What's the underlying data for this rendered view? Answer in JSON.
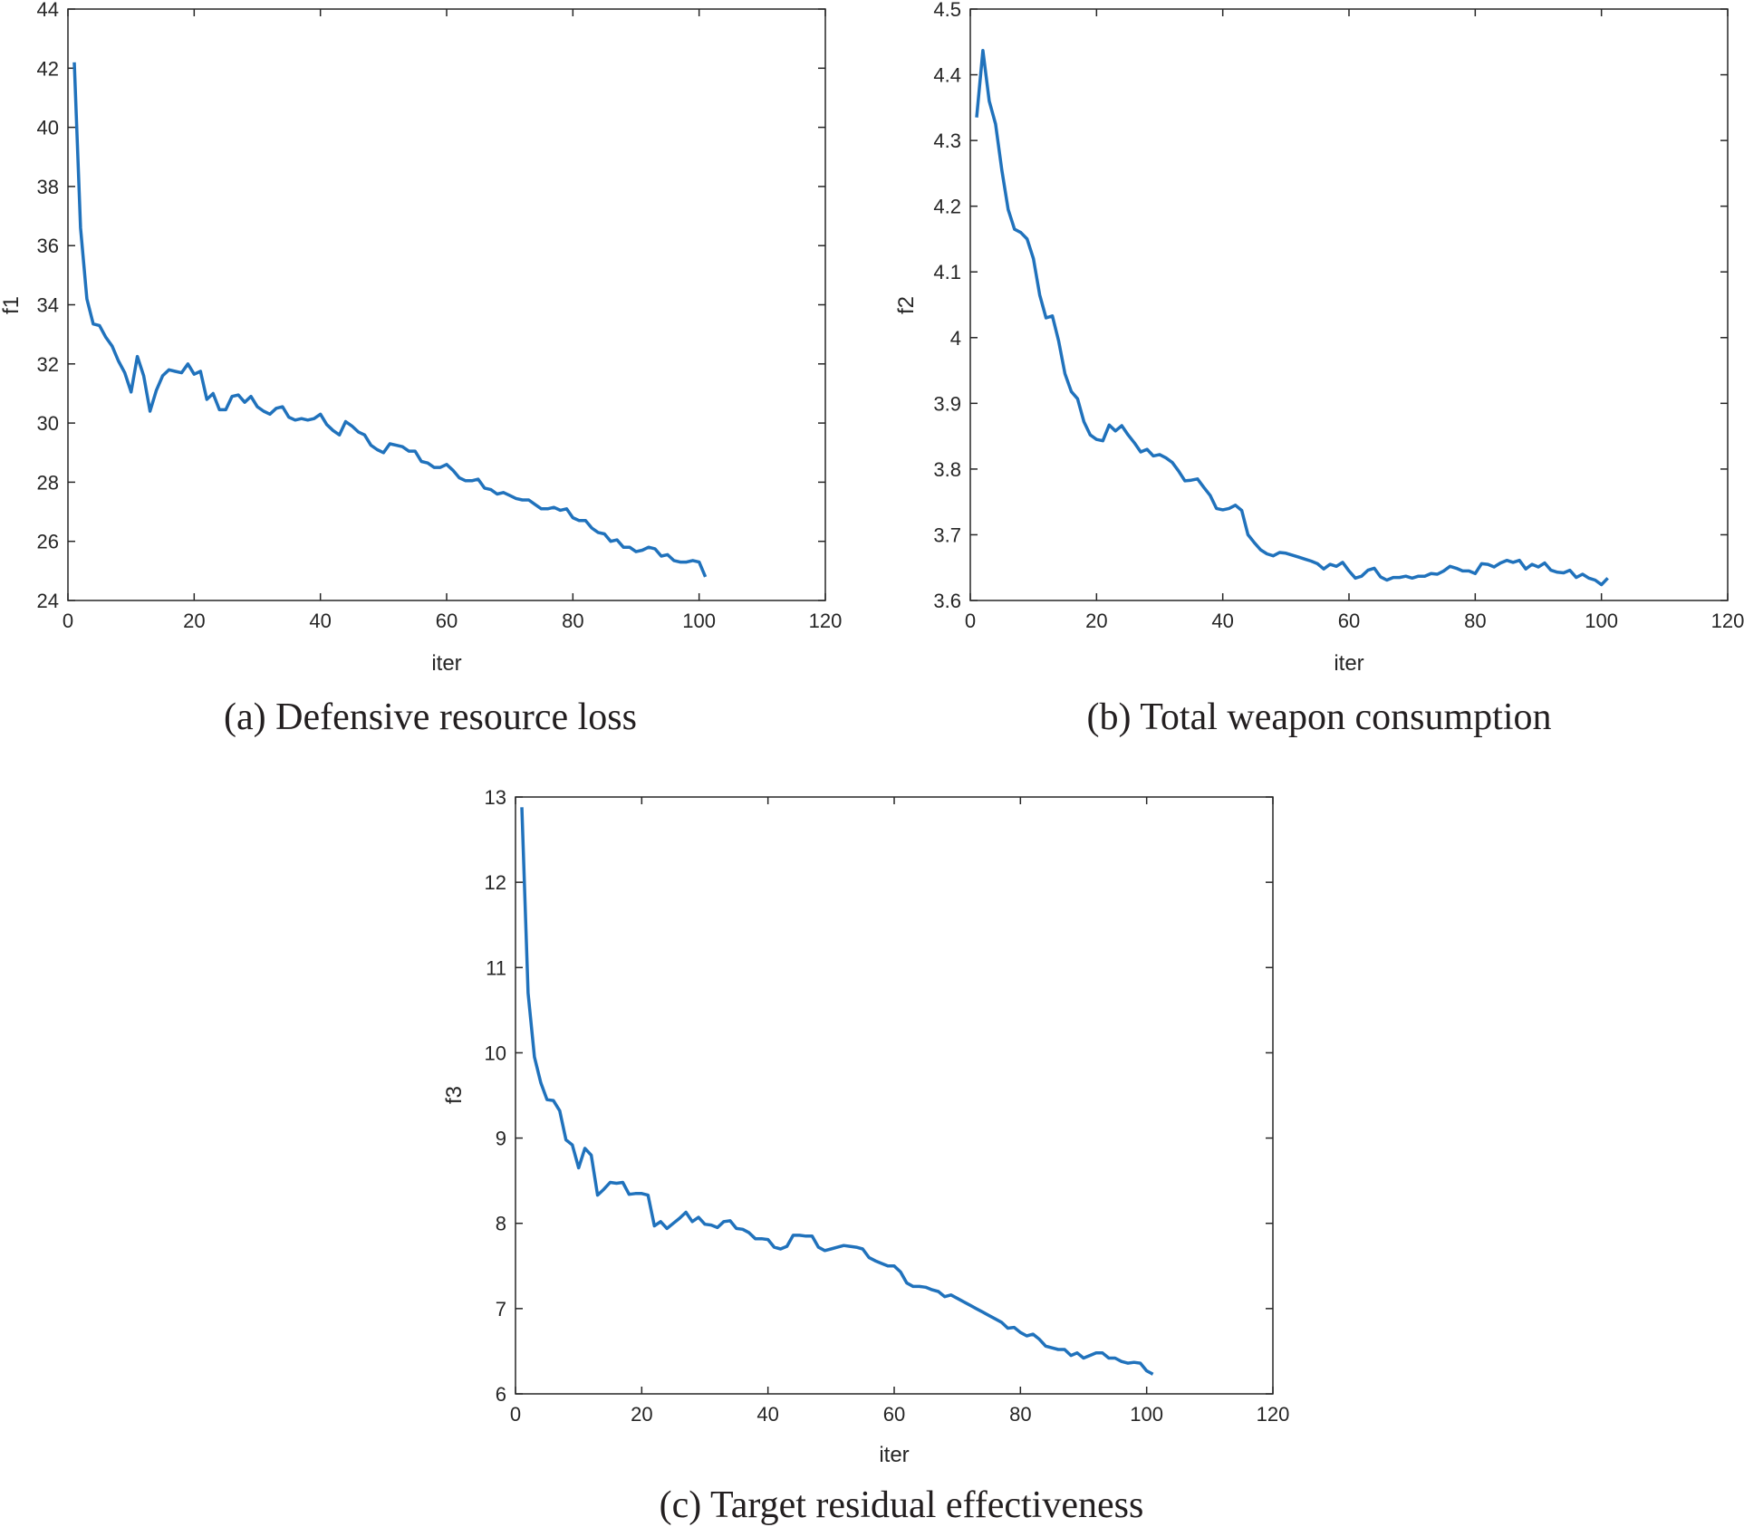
{
  "chart_data": [
    {
      "type": "line",
      "caption": "(a) Defensive resource loss",
      "xlabel": "iter",
      "ylabel": "f1",
      "xlim": [
        0,
        120
      ],
      "ylim": [
        24,
        44
      ],
      "xticks": [
        "0",
        "20",
        "40",
        "60",
        "80",
        "100",
        "120"
      ],
      "yticks": [
        "24",
        "26",
        "28",
        "30",
        "32",
        "34",
        "36",
        "38",
        "40",
        "42",
        "44"
      ],
      "series": [
        {
          "name": "f1",
          "color": "#2072BC",
          "x": [
            1,
            2,
            3,
            4,
            5,
            6,
            7,
            8,
            9,
            10,
            11,
            12,
            13,
            14,
            15,
            16,
            17,
            18,
            19,
            20,
            21,
            22,
            23,
            24,
            25,
            26,
            27,
            28,
            29,
            30,
            31,
            32,
            33,
            34,
            35,
            36,
            37,
            38,
            39,
            40,
            41,
            42,
            43,
            44,
            45,
            46,
            47,
            48,
            49,
            50,
            51,
            52,
            53,
            54,
            55,
            56,
            57,
            58,
            59,
            60,
            61,
            62,
            63,
            64,
            65,
            66,
            67,
            68,
            69,
            70,
            71,
            72,
            73,
            74,
            75,
            76,
            77,
            78,
            79,
            80,
            81,
            82,
            83,
            84,
            85,
            86,
            87,
            88,
            89,
            90,
            91,
            92,
            93,
            94,
            95,
            96,
            97,
            98,
            99,
            100,
            101
          ],
          "values": [
            42.2,
            36.6,
            34.2,
            33.35,
            33.3,
            32.9,
            32.6,
            32.1,
            31.7,
            31.05,
            32.25,
            31.6,
            30.4,
            31.1,
            31.6,
            31.8,
            31.75,
            31.7,
            32.0,
            31.65,
            31.75,
            30.8,
            31.0,
            30.45,
            30.45,
            30.9,
            30.95,
            30.7,
            30.9,
            30.55,
            30.4,
            30.3,
            30.5,
            30.55,
            30.2,
            30.1,
            30.15,
            30.1,
            30.15,
            30.3,
            29.95,
            29.75,
            29.6,
            30.05,
            29.9,
            29.7,
            29.6,
            29.25,
            29.1,
            29.0,
            29.3,
            29.25,
            29.2,
            29.05,
            29.05,
            28.7,
            28.65,
            28.5,
            28.5,
            28.6,
            28.4,
            28.15,
            28.05,
            28.05,
            28.1,
            27.8,
            27.75,
            27.6,
            27.65,
            27.55,
            27.45,
            27.4,
            27.4,
            27.25,
            27.1,
            27.1,
            27.15,
            27.05,
            27.1,
            26.8,
            26.7,
            26.7,
            26.45,
            26.3,
            26.25,
            26.0,
            26.05,
            25.8,
            25.8,
            25.65,
            25.7,
            25.8,
            25.75,
            25.5,
            25.55,
            25.35,
            25.3,
            25.3,
            25.35,
            25.3,
            24.8
          ]
        }
      ]
    },
    {
      "type": "line",
      "caption": "(b) Total weapon consumption",
      "xlabel": "iter",
      "ylabel": "f2",
      "xlim": [
        0,
        120
      ],
      "ylim": [
        3.6,
        4.5
      ],
      "xticks": [
        "0",
        "20",
        "40",
        "60",
        "80",
        "100",
        "120"
      ],
      "yticks": [
        "3.6",
        "3.7",
        "3.8",
        "3.9",
        "4",
        "4.1",
        "4.2",
        "4.3",
        "4.4",
        "4.5"
      ],
      "series": [
        {
          "name": "f2",
          "color": "#2072BC",
          "x": [
            1,
            2,
            3,
            4,
            5,
            6,
            7,
            8,
            9,
            10,
            11,
            12,
            13,
            14,
            15,
            16,
            17,
            18,
            19,
            20,
            21,
            22,
            23,
            24,
            25,
            26,
            27,
            28,
            29,
            30,
            31,
            32,
            33,
            34,
            35,
            36,
            37,
            38,
            39,
            40,
            41,
            42,
            43,
            44,
            45,
            46,
            47,
            48,
            49,
            50,
            51,
            52,
            53,
            54,
            55,
            56,
            57,
            58,
            59,
            60,
            61,
            62,
            63,
            64,
            65,
            66,
            67,
            68,
            69,
            70,
            71,
            72,
            73,
            74,
            75,
            76,
            77,
            78,
            79,
            80,
            81,
            82,
            83,
            84,
            85,
            86,
            87,
            88,
            89,
            90,
            91,
            92,
            93,
            94,
            95,
            96,
            97,
            98,
            99,
            100,
            101
          ],
          "values": [
            4.335,
            4.437,
            4.36,
            4.325,
            4.255,
            4.195,
            4.165,
            4.16,
            4.15,
            4.12,
            4.065,
            4.03,
            4.033,
            3.995,
            3.945,
            3.918,
            3.907,
            3.872,
            3.852,
            3.845,
            3.843,
            3.867,
            3.858,
            3.866,
            3.852,
            3.84,
            3.826,
            3.83,
            3.82,
            3.822,
            3.817,
            3.81,
            3.797,
            3.782,
            3.783,
            3.785,
            3.772,
            3.76,
            3.74,
            3.738,
            3.74,
            3.745,
            3.737,
            3.7,
            3.688,
            3.677,
            3.671,
            3.668,
            3.673,
            3.672,
            3.669,
            3.666,
            3.663,
            3.66,
            3.656,
            3.648,
            3.655,
            3.652,
            3.658,
            3.645,
            3.634,
            3.637,
            3.646,
            3.649,
            3.636,
            3.631,
            3.635,
            3.635,
            3.637,
            3.634,
            3.637,
            3.637,
            3.641,
            3.64,
            3.645,
            3.652,
            3.649,
            3.645,
            3.645,
            3.641,
            3.656,
            3.655,
            3.651,
            3.657,
            3.661,
            3.658,
            3.661,
            3.648,
            3.655,
            3.651,
            3.657,
            3.646,
            3.643,
            3.642,
            3.646,
            3.635,
            3.64,
            3.634,
            3.631,
            3.624,
            3.634
          ]
        }
      ]
    },
    {
      "type": "line",
      "caption": "(c) Target residual effectiveness",
      "xlabel": "iter",
      "ylabel": "f3",
      "xlim": [
        0,
        120
      ],
      "ylim": [
        6,
        13
      ],
      "xticks": [
        "0",
        "20",
        "40",
        "60",
        "80",
        "100",
        "120"
      ],
      "yticks": [
        "6",
        "7",
        "8",
        "9",
        "10",
        "11",
        "12",
        "13"
      ],
      "series": [
        {
          "name": "f3",
          "color": "#2072BC",
          "x": [
            1,
            2,
            3,
            4,
            5,
            6,
            7,
            8,
            9,
            10,
            11,
            12,
            13,
            14,
            15,
            16,
            17,
            18,
            19,
            20,
            21,
            22,
            23,
            24,
            25,
            26,
            27,
            28,
            29,
            30,
            31,
            32,
            33,
            34,
            35,
            36,
            37,
            38,
            39,
            40,
            41,
            42,
            43,
            44,
            45,
            46,
            47,
            48,
            49,
            50,
            51,
            52,
            53,
            54,
            55,
            56,
            57,
            58,
            59,
            60,
            61,
            62,
            63,
            64,
            65,
            66,
            67,
            68,
            69,
            70,
            71,
            72,
            73,
            74,
            75,
            76,
            77,
            78,
            79,
            80,
            81,
            82,
            83,
            84,
            85,
            86,
            87,
            88,
            89,
            90,
            91,
            92,
            93,
            94,
            95,
            96,
            97,
            98,
            99,
            100,
            101
          ],
          "values": [
            12.88,
            10.7,
            9.95,
            9.65,
            9.45,
            9.44,
            9.32,
            8.98,
            8.92,
            8.65,
            8.88,
            8.8,
            8.33,
            8.4,
            8.48,
            8.47,
            8.48,
            8.34,
            8.35,
            8.35,
            8.33,
            7.97,
            8.02,
            7.94,
            8.0,
            8.06,
            8.13,
            8.02,
            8.07,
            7.99,
            7.98,
            7.95,
            8.02,
            8.03,
            7.94,
            7.93,
            7.89,
            7.82,
            7.82,
            7.81,
            7.72,
            7.7,
            7.73,
            7.86,
            7.86,
            7.85,
            7.85,
            7.72,
            7.68,
            7.7,
            7.72,
            7.74,
            7.73,
            7.72,
            7.7,
            7.6,
            7.56,
            7.53,
            7.5,
            7.5,
            7.43,
            7.3,
            7.26,
            7.26,
            7.25,
            7.22,
            7.2,
            7.14,
            7.16,
            7.12,
            7.08,
            7.04,
            7.0,
            6.96,
            6.92,
            6.88,
            6.84,
            6.77,
            6.78,
            6.72,
            6.68,
            6.7,
            6.64,
            6.56,
            6.54,
            6.52,
            6.52,
            6.45,
            6.48,
            6.42,
            6.45,
            6.48,
            6.48,
            6.42,
            6.42,
            6.38,
            6.36,
            6.37,
            6.36,
            6.27,
            6.23
          ]
        }
      ]
    }
  ]
}
